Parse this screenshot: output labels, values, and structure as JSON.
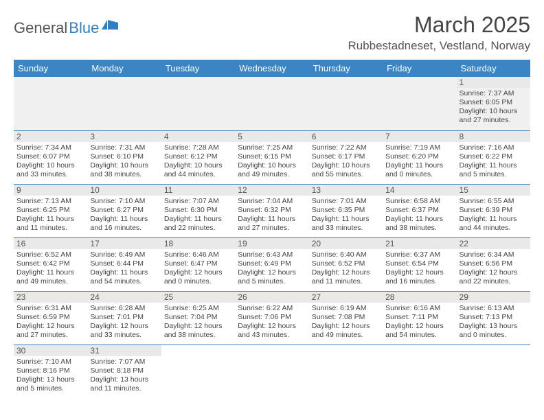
{
  "logo": {
    "part1": "General",
    "part2": "Blue"
  },
  "title": "March 2025",
  "location": "Rubbestadneset, Vestland, Norway",
  "colors": {
    "header_bg": "#3b85c5",
    "header_text": "#ffffff",
    "daynum_bg": "#e9e9e9",
    "border": "#3b85c5",
    "logo_gray": "#565656",
    "logo_blue": "#2f7fc2"
  },
  "day_headers": [
    "Sunday",
    "Monday",
    "Tuesday",
    "Wednesday",
    "Thursday",
    "Friday",
    "Saturday"
  ],
  "weeks": [
    [
      null,
      null,
      null,
      null,
      null,
      null,
      {
        "n": "1",
        "sunrise": "Sunrise: 7:37 AM",
        "sunset": "Sunset: 6:05 PM",
        "daylight": "Daylight: 10 hours and 27 minutes."
      }
    ],
    [
      {
        "n": "2",
        "sunrise": "Sunrise: 7:34 AM",
        "sunset": "Sunset: 6:07 PM",
        "daylight": "Daylight: 10 hours and 33 minutes."
      },
      {
        "n": "3",
        "sunrise": "Sunrise: 7:31 AM",
        "sunset": "Sunset: 6:10 PM",
        "daylight": "Daylight: 10 hours and 38 minutes."
      },
      {
        "n": "4",
        "sunrise": "Sunrise: 7:28 AM",
        "sunset": "Sunset: 6:12 PM",
        "daylight": "Daylight: 10 hours and 44 minutes."
      },
      {
        "n": "5",
        "sunrise": "Sunrise: 7:25 AM",
        "sunset": "Sunset: 6:15 PM",
        "daylight": "Daylight: 10 hours and 49 minutes."
      },
      {
        "n": "6",
        "sunrise": "Sunrise: 7:22 AM",
        "sunset": "Sunset: 6:17 PM",
        "daylight": "Daylight: 10 hours and 55 minutes."
      },
      {
        "n": "7",
        "sunrise": "Sunrise: 7:19 AM",
        "sunset": "Sunset: 6:20 PM",
        "daylight": "Daylight: 11 hours and 0 minutes."
      },
      {
        "n": "8",
        "sunrise": "Sunrise: 7:16 AM",
        "sunset": "Sunset: 6:22 PM",
        "daylight": "Daylight: 11 hours and 5 minutes."
      }
    ],
    [
      {
        "n": "9",
        "sunrise": "Sunrise: 7:13 AM",
        "sunset": "Sunset: 6:25 PM",
        "daylight": "Daylight: 11 hours and 11 minutes."
      },
      {
        "n": "10",
        "sunrise": "Sunrise: 7:10 AM",
        "sunset": "Sunset: 6:27 PM",
        "daylight": "Daylight: 11 hours and 16 minutes."
      },
      {
        "n": "11",
        "sunrise": "Sunrise: 7:07 AM",
        "sunset": "Sunset: 6:30 PM",
        "daylight": "Daylight: 11 hours and 22 minutes."
      },
      {
        "n": "12",
        "sunrise": "Sunrise: 7:04 AM",
        "sunset": "Sunset: 6:32 PM",
        "daylight": "Daylight: 11 hours and 27 minutes."
      },
      {
        "n": "13",
        "sunrise": "Sunrise: 7:01 AM",
        "sunset": "Sunset: 6:35 PM",
        "daylight": "Daylight: 11 hours and 33 minutes."
      },
      {
        "n": "14",
        "sunrise": "Sunrise: 6:58 AM",
        "sunset": "Sunset: 6:37 PM",
        "daylight": "Daylight: 11 hours and 38 minutes."
      },
      {
        "n": "15",
        "sunrise": "Sunrise: 6:55 AM",
        "sunset": "Sunset: 6:39 PM",
        "daylight": "Daylight: 11 hours and 44 minutes."
      }
    ],
    [
      {
        "n": "16",
        "sunrise": "Sunrise: 6:52 AM",
        "sunset": "Sunset: 6:42 PM",
        "daylight": "Daylight: 11 hours and 49 minutes."
      },
      {
        "n": "17",
        "sunrise": "Sunrise: 6:49 AM",
        "sunset": "Sunset: 6:44 PM",
        "daylight": "Daylight: 11 hours and 54 minutes."
      },
      {
        "n": "18",
        "sunrise": "Sunrise: 6:46 AM",
        "sunset": "Sunset: 6:47 PM",
        "daylight": "Daylight: 12 hours and 0 minutes."
      },
      {
        "n": "19",
        "sunrise": "Sunrise: 6:43 AM",
        "sunset": "Sunset: 6:49 PM",
        "daylight": "Daylight: 12 hours and 5 minutes."
      },
      {
        "n": "20",
        "sunrise": "Sunrise: 6:40 AM",
        "sunset": "Sunset: 6:52 PM",
        "daylight": "Daylight: 12 hours and 11 minutes."
      },
      {
        "n": "21",
        "sunrise": "Sunrise: 6:37 AM",
        "sunset": "Sunset: 6:54 PM",
        "daylight": "Daylight: 12 hours and 16 minutes."
      },
      {
        "n": "22",
        "sunrise": "Sunrise: 6:34 AM",
        "sunset": "Sunset: 6:56 PM",
        "daylight": "Daylight: 12 hours and 22 minutes."
      }
    ],
    [
      {
        "n": "23",
        "sunrise": "Sunrise: 6:31 AM",
        "sunset": "Sunset: 6:59 PM",
        "daylight": "Daylight: 12 hours and 27 minutes."
      },
      {
        "n": "24",
        "sunrise": "Sunrise: 6:28 AM",
        "sunset": "Sunset: 7:01 PM",
        "daylight": "Daylight: 12 hours and 33 minutes."
      },
      {
        "n": "25",
        "sunrise": "Sunrise: 6:25 AM",
        "sunset": "Sunset: 7:04 PM",
        "daylight": "Daylight: 12 hours and 38 minutes."
      },
      {
        "n": "26",
        "sunrise": "Sunrise: 6:22 AM",
        "sunset": "Sunset: 7:06 PM",
        "daylight": "Daylight: 12 hours and 43 minutes."
      },
      {
        "n": "27",
        "sunrise": "Sunrise: 6:19 AM",
        "sunset": "Sunset: 7:08 PM",
        "daylight": "Daylight: 12 hours and 49 minutes."
      },
      {
        "n": "28",
        "sunrise": "Sunrise: 6:16 AM",
        "sunset": "Sunset: 7:11 PM",
        "daylight": "Daylight: 12 hours and 54 minutes."
      },
      {
        "n": "29",
        "sunrise": "Sunrise: 6:13 AM",
        "sunset": "Sunset: 7:13 PM",
        "daylight": "Daylight: 13 hours and 0 minutes."
      }
    ],
    [
      {
        "n": "30",
        "sunrise": "Sunrise: 7:10 AM",
        "sunset": "Sunset: 8:16 PM",
        "daylight": "Daylight: 13 hours and 5 minutes."
      },
      {
        "n": "31",
        "sunrise": "Sunrise: 7:07 AM",
        "sunset": "Sunset: 8:18 PM",
        "daylight": "Daylight: 13 hours and 11 minutes."
      },
      null,
      null,
      null,
      null,
      null
    ]
  ]
}
